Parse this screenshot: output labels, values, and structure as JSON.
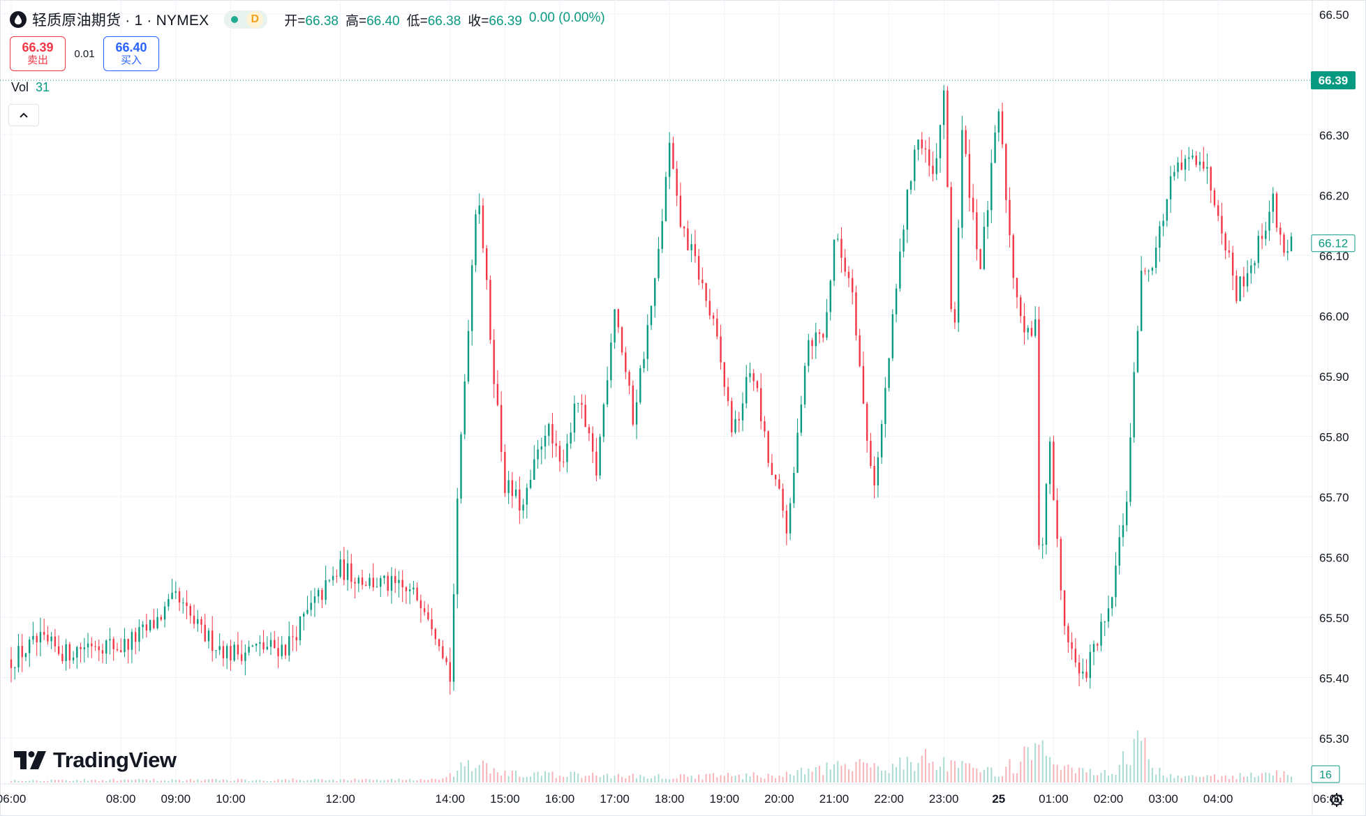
{
  "header": {
    "symbol_title": "轻质原油期货 · 1 · NYMEX",
    "status_label": "D",
    "ohlc": {
      "open_label": "开=",
      "open": "66.38",
      "high_label": "高=",
      "high": "66.40",
      "low_label": "低=",
      "low": "66.38",
      "close_label": "收=",
      "close": "66.39",
      "change": "0.00 (0.00%)"
    }
  },
  "trade": {
    "sell_price": "66.39",
    "sell_label": "卖出",
    "spread": "0.01",
    "buy_price": "66.40",
    "buy_label": "买入"
  },
  "volume_legend": {
    "label": "Vol",
    "value": "31"
  },
  "branding": {
    "name": "TradingView"
  },
  "colors": {
    "up": "#089981",
    "down": "#f23645",
    "up_volume": "#a8dbd2",
    "down_volume": "#f7b4b9",
    "grid": "#f0f3fa",
    "axis_text": "#131722",
    "last_price_tag": "#089981",
    "icon_accent": "#22ab94",
    "status_bg": "#e8f3ef"
  },
  "icons": {
    "symbol": "oil-drop-icon",
    "collapse": "chevron-up-icon",
    "settings": "gear-icon",
    "logo": "tradingview-logo-icon"
  },
  "chart_data": {
    "type": "candlestick",
    "interval": "1 minute",
    "y_axis": {
      "range": [
        65.25,
        66.52
      ],
      "ticks": [
        "66.50",
        "66.30",
        "66.20",
        "66.10",
        "66.00",
        "65.90",
        "65.80",
        "65.70",
        "65.60",
        "65.50",
        "65.40",
        "65.30"
      ]
    },
    "x_axis": {
      "ticks": [
        "06:00",
        "08:00",
        "09:00",
        "10:00",
        "12:00",
        "14:00",
        "15:00",
        "16:00",
        "17:00",
        "18:00",
        "19:00",
        "20:00",
        "21:00",
        "22:00",
        "23:00",
        "25",
        "01:00",
        "02:00",
        "03:00",
        "04:00",
        "06:00"
      ],
      "bold_ticks": [
        "25"
      ]
    },
    "last_price": "66.39",
    "secondary_price": "66.12",
    "volume_last": "16",
    "grid": true,
    "price_path": [
      [
        "06:00",
        65.43
      ],
      [
        "06:30",
        65.46
      ],
      [
        "07:00",
        65.44
      ],
      [
        "07:30",
        65.46
      ],
      [
        "08:00",
        65.45
      ],
      [
        "08:30",
        65.48
      ],
      [
        "09:00",
        65.53
      ],
      [
        "09:15",
        65.5
      ],
      [
        "09:30",
        65.47
      ],
      [
        "10:00",
        65.44
      ],
      [
        "10:30",
        65.45
      ],
      [
        "11:00",
        65.45
      ],
      [
        "11:30",
        65.52
      ],
      [
        "12:00",
        65.58
      ],
      [
        "12:30",
        65.56
      ],
      [
        "13:00",
        65.55
      ],
      [
        "13:30",
        65.53
      ],
      [
        "13:50",
        65.46
      ],
      [
        "14:00",
        65.4
      ],
      [
        "14:10",
        65.75
      ],
      [
        "14:30",
        66.23
      ],
      [
        "14:45",
        65.95
      ],
      [
        "15:00",
        65.72
      ],
      [
        "15:20",
        65.68
      ],
      [
        "15:45",
        65.82
      ],
      [
        "16:00",
        65.75
      ],
      [
        "16:20",
        65.86
      ],
      [
        "16:40",
        65.74
      ],
      [
        "17:00",
        66.02
      ],
      [
        "17:20",
        65.83
      ],
      [
        "17:45",
        66.06
      ],
      [
        "18:00",
        66.28
      ],
      [
        "18:10",
        66.16
      ],
      [
        "18:30",
        66.08
      ],
      [
        "18:50",
        65.97
      ],
      [
        "19:10",
        65.8
      ],
      [
        "19:30",
        65.92
      ],
      [
        "19:50",
        65.74
      ],
      [
        "20:00",
        65.7
      ],
      [
        "20:10",
        65.64
      ],
      [
        "20:30",
        65.96
      ],
      [
        "20:50",
        65.97
      ],
      [
        "21:00",
        66.13
      ],
      [
        "21:20",
        66.05
      ],
      [
        "21:35",
        65.8
      ],
      [
        "21:45",
        65.72
      ],
      [
        "22:00",
        65.93
      ],
      [
        "22:15",
        66.14
      ],
      [
        "22:30",
        66.3
      ],
      [
        "22:50",
        66.22
      ],
      [
        "23:00",
        66.38
      ],
      [
        "23:10",
        65.92
      ],
      [
        "23:20",
        66.3
      ],
      [
        "23:40",
        66.08
      ],
      [
        "24:00",
        66.34
      ],
      [
        "24:15",
        66.08
      ],
      [
        "24:30",
        65.96
      ],
      [
        "24:40",
        65.98
      ],
      [
        "24:45",
        65.55
      ],
      [
        "24:55",
        65.8
      ],
      [
        "25:10",
        65.5
      ],
      [
        "25:30",
        65.39
      ],
      [
        "25:50",
        65.47
      ],
      [
        "26:00",
        65.5
      ],
      [
        "26:20",
        65.7
      ],
      [
        "26:35",
        66.06
      ],
      [
        "26:50",
        66.1
      ],
      [
        "27:10",
        66.23
      ],
      [
        "27:40",
        66.27
      ],
      [
        "28:00",
        66.18
      ],
      [
        "28:20",
        66.04
      ],
      [
        "28:40",
        66.1
      ],
      [
        "29:00",
        66.19
      ],
      [
        "29:10",
        66.11
      ],
      [
        "29:20",
        66.12
      ]
    ],
    "volume_path": [
      [
        "06:00",
        4
      ],
      [
        "13:55",
        5
      ],
      [
        "14:10",
        22
      ],
      [
        "14:30",
        30
      ],
      [
        "15:00",
        14
      ],
      [
        "18:00",
        10
      ],
      [
        "20:00",
        12
      ],
      [
        "21:00",
        24
      ],
      [
        "22:00",
        30
      ],
      [
        "22:40",
        40
      ],
      [
        "23:00",
        28
      ],
      [
        "24:00",
        16
      ],
      [
        "24:45",
        55
      ],
      [
        "25:00",
        22
      ],
      [
        "26:00",
        14
      ],
      [
        "26:35",
        62
      ],
      [
        "27:00",
        12
      ],
      [
        "28:00",
        9
      ],
      [
        "29:20",
        16
      ]
    ]
  }
}
